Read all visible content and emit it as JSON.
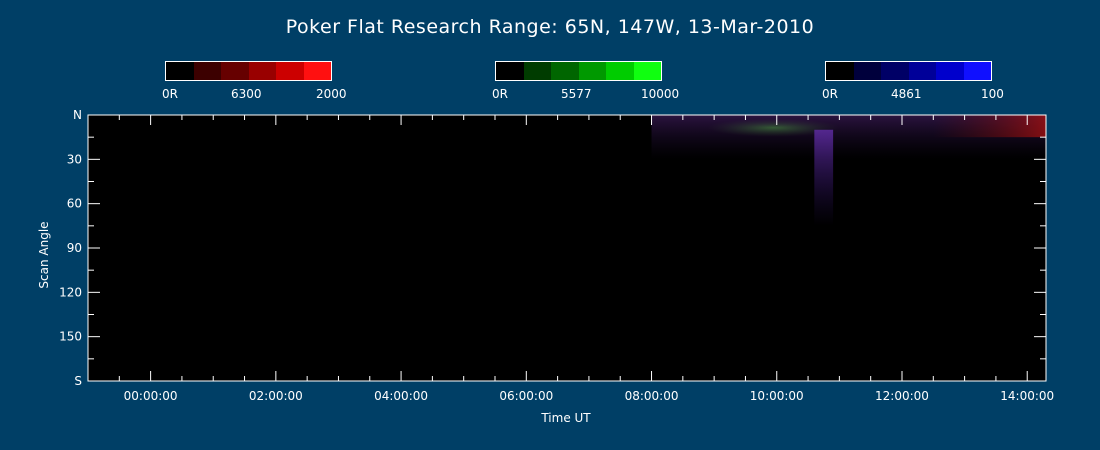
{
  "title": "Poker Flat Research Range: 65N, 147W, 13-Mar-2010",
  "colorbars": [
    {
      "min_label": "0R",
      "mid_label": "6300",
      "max_label": "2000",
      "colors": [
        "#000000",
        "#3c0000",
        "#660000",
        "#990000",
        "#cc0000",
        "#ff1010"
      ]
    },
    {
      "min_label": "0R",
      "mid_label": "5577",
      "max_label": "10000",
      "colors": [
        "#000000",
        "#003c00",
        "#006600",
        "#009900",
        "#00cc00",
        "#10ff10"
      ]
    },
    {
      "min_label": "0R",
      "mid_label": "4861",
      "max_label": "100",
      "colors": [
        "#000000",
        "#00003c",
        "#000066",
        "#000099",
        "#0000cc",
        "#1010ff"
      ]
    }
  ],
  "chart_data": {
    "type": "heatmap",
    "title": "Poker Flat Research Range: 65N, 147W, 13-Mar-2010",
    "xlabel": "Time UT",
    "ylabel": "Scan Angle",
    "x_tick_labels": [
      "00:00:00",
      "02:00:00",
      "04:00:00",
      "06:00:00",
      "08:00:00",
      "10:00:00",
      "12:00:00",
      "14:00:00"
    ],
    "x_ticks_hours": [
      0,
      2,
      4,
      6,
      8,
      10,
      12,
      14
    ],
    "xlim_hours": [
      -1.0,
      14.3
    ],
    "y_tick_labels": [
      "N",
      "30",
      "60",
      "90",
      "120",
      "150",
      "S"
    ],
    "y_ticks": [
      0,
      30,
      60,
      90,
      120,
      150,
      180
    ],
    "ylim": [
      0,
      180
    ],
    "channels": [
      "6300",
      "5577",
      "4861"
    ],
    "features": [
      {
        "channel": "5577",
        "hours": [
          8.9,
          11.0
        ],
        "angle": [
          5,
          12
        ],
        "note": "green arc near north"
      },
      {
        "channel": "4861",
        "hours": [
          8.0,
          14.3
        ],
        "angle": [
          0,
          30
        ],
        "note": "purple diffuse band"
      },
      {
        "channel": "4861",
        "hours": [
          10.6,
          10.9
        ],
        "angle": [
          10,
          75
        ],
        "note": "blue spike"
      },
      {
        "channel": "6300",
        "hours": [
          12.5,
          14.3
        ],
        "angle": [
          0,
          15
        ],
        "note": "red glow"
      }
    ]
  }
}
